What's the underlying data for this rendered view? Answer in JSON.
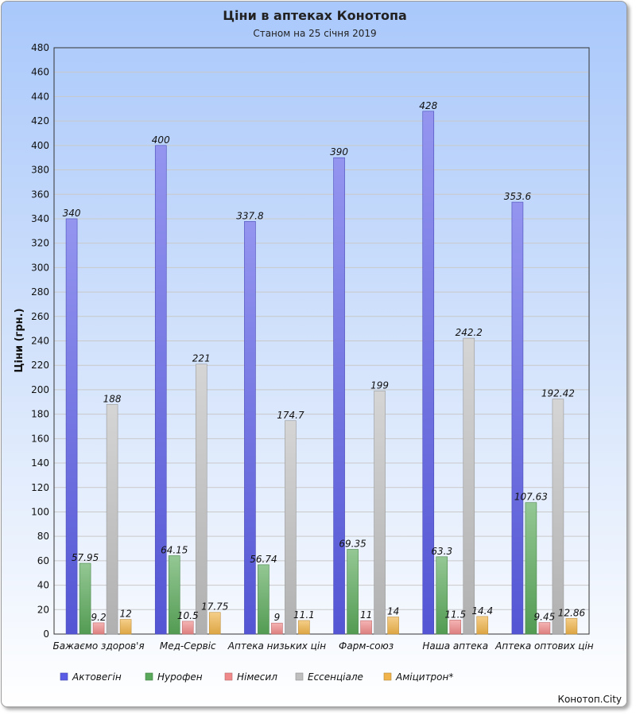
{
  "chart_data": {
    "type": "bar",
    "title": "Ціни в аптеках Конотопа",
    "subtitle": "Станом на 25 січня 2019",
    "xlabel": "",
    "ylabel": "Ціни (грн.)",
    "ylim": [
      0,
      480
    ],
    "ytick_step": 20,
    "grid": true,
    "legend_position": "bottom-left",
    "categories": [
      "Бажаємо здоров'я",
      "Мед-Сервіс",
      "Аптека низьких цін",
      "Фарм-союз",
      "Наша аптека",
      "Аптека оптових цін"
    ],
    "series": [
      {
        "name": "Актовегін",
        "color": "#5a5ce6",
        "values": [
          340,
          400,
          337.8,
          390,
          428,
          353.6
        ],
        "labels": [
          "340",
          "400",
          "337.8",
          "390",
          "428",
          "353.6"
        ]
      },
      {
        "name": "Нурофен",
        "color": "#5aa95a",
        "values": [
          57.95,
          64.15,
          56.74,
          69.35,
          63.3,
          107.63
        ],
        "labels": [
          "57.95",
          "64.15",
          "56.74",
          "69.35",
          "63.3",
          "107.63"
        ]
      },
      {
        "name": "Німесил",
        "color": "#f08a8a",
        "values": [
          9.2,
          10.5,
          9,
          11,
          11.5,
          9.45
        ],
        "labels": [
          "9.2",
          "10.5",
          "9",
          "11",
          "11.5",
          "9.45"
        ]
      },
      {
        "name": "Ессенціале",
        "color": "#bfbfbf",
        "values": [
          188,
          221,
          174.7,
          199,
          242.2,
          192.42
        ],
        "labels": [
          "188",
          "221",
          "174.7",
          "199",
          "242.2",
          "192.42"
        ]
      },
      {
        "name": "Аміцитрон*",
        "color": "#f0b44a",
        "values": [
          12,
          17.75,
          11.1,
          14,
          14.4,
          12.86
        ],
        "labels": [
          "12",
          "17.75",
          "11.1",
          "14",
          "14.4",
          "12.86"
        ]
      }
    ]
  },
  "credit": "Конотоп.City"
}
